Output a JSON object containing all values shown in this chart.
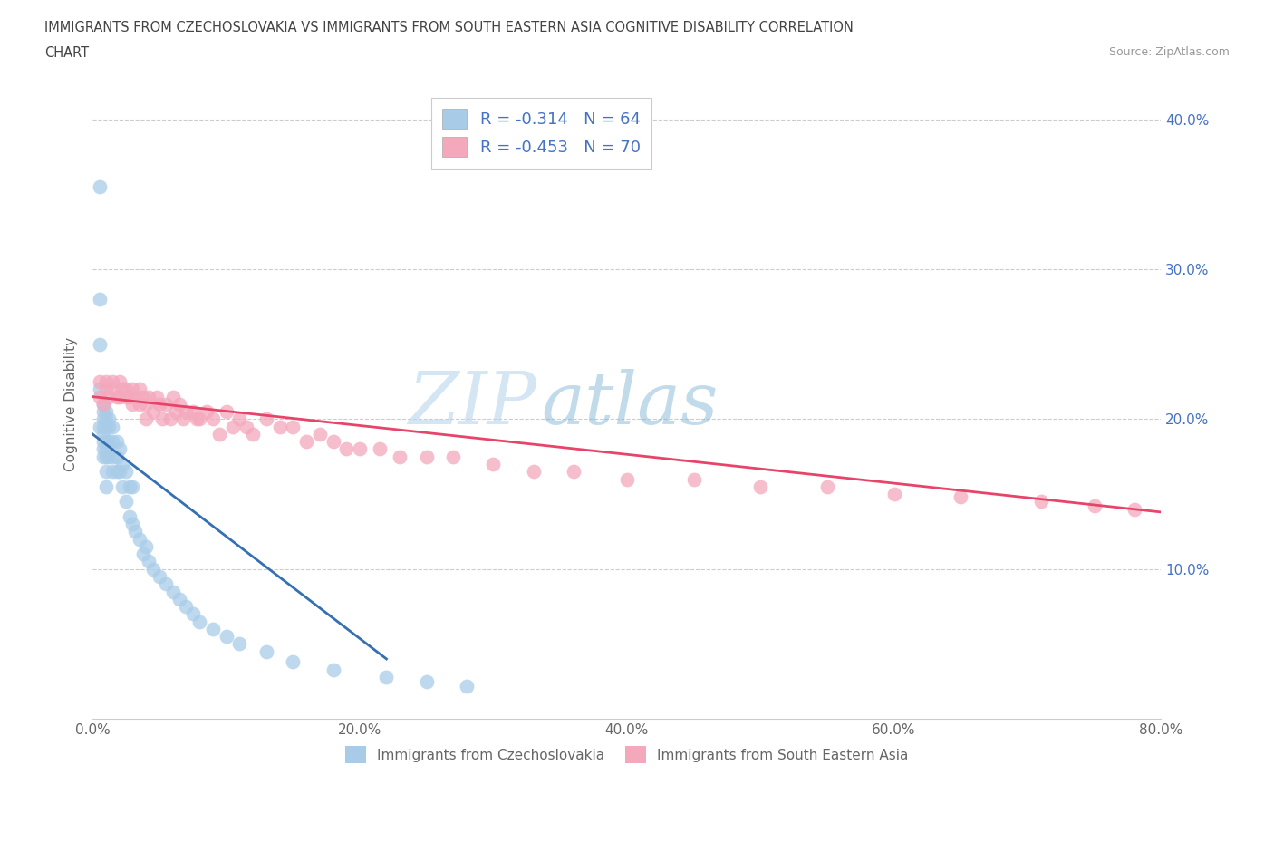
{
  "title_line1": "IMMIGRANTS FROM CZECHOSLOVAKIA VS IMMIGRANTS FROM SOUTH EASTERN ASIA COGNITIVE DISABILITY CORRELATION",
  "title_line2": "CHART",
  "source": "Source: ZipAtlas.com",
  "ylabel": "Cognitive Disability",
  "xlabel": "",
  "legend_label1": "Immigrants from Czechoslovakia",
  "legend_label2": "Immigrants from South Eastern Asia",
  "r1": -0.314,
  "n1": 64,
  "r2": -0.453,
  "n2": 70,
  "color1": "#a8cce8",
  "color2": "#f4a8bc",
  "line_color1": "#3470b2",
  "line_color2": "#e8446a",
  "xlim": [
    0.0,
    0.8
  ],
  "ylim": [
    0.0,
    0.42
  ],
  "xticks": [
    0.0,
    0.2,
    0.4,
    0.6,
    0.8
  ],
  "yticks": [
    0.1,
    0.2,
    0.3,
    0.4
  ],
  "xticklabels": [
    "0.0%",
    "20.0%",
    "40.0%",
    "60.0%",
    "80.0%"
  ],
  "yticklabels": [
    "10.0%",
    "20.0%",
    "30.0%",
    "40.0%"
  ],
  "grid_color": "#cccccc",
  "background_color": "#ffffff",
  "watermark_zip": "ZIP",
  "watermark_atlas": "atlas",
  "scatter1_x": [
    0.005,
    0.005,
    0.005,
    0.005,
    0.005,
    0.008,
    0.008,
    0.008,
    0.008,
    0.008,
    0.008,
    0.008,
    0.008,
    0.01,
    0.01,
    0.01,
    0.01,
    0.01,
    0.01,
    0.01,
    0.01,
    0.012,
    0.012,
    0.012,
    0.012,
    0.015,
    0.015,
    0.015,
    0.015,
    0.018,
    0.018,
    0.018,
    0.02,
    0.02,
    0.022,
    0.022,
    0.025,
    0.025,
    0.028,
    0.028,
    0.03,
    0.03,
    0.032,
    0.035,
    0.038,
    0.04,
    0.042,
    0.045,
    0.05,
    0.055,
    0.06,
    0.065,
    0.07,
    0.075,
    0.08,
    0.09,
    0.1,
    0.11,
    0.13,
    0.15,
    0.18,
    0.22,
    0.25,
    0.28
  ],
  "scatter1_y": [
    0.355,
    0.28,
    0.25,
    0.22,
    0.195,
    0.21,
    0.205,
    0.2,
    0.195,
    0.19,
    0.185,
    0.18,
    0.175,
    0.205,
    0.2,
    0.195,
    0.185,
    0.18,
    0.175,
    0.165,
    0.155,
    0.2,
    0.195,
    0.185,
    0.175,
    0.195,
    0.185,
    0.175,
    0.165,
    0.185,
    0.175,
    0.165,
    0.18,
    0.165,
    0.17,
    0.155,
    0.165,
    0.145,
    0.155,
    0.135,
    0.155,
    0.13,
    0.125,
    0.12,
    0.11,
    0.115,
    0.105,
    0.1,
    0.095,
    0.09,
    0.085,
    0.08,
    0.075,
    0.07,
    0.065,
    0.06,
    0.055,
    0.05,
    0.045,
    0.038,
    0.033,
    0.028,
    0.025,
    0.022
  ],
  "scatter2_x": [
    0.005,
    0.005,
    0.008,
    0.01,
    0.01,
    0.012,
    0.015,
    0.015,
    0.018,
    0.02,
    0.02,
    0.022,
    0.025,
    0.025,
    0.028,
    0.03,
    0.03,
    0.032,
    0.035,
    0.035,
    0.038,
    0.04,
    0.04,
    0.042,
    0.045,
    0.048,
    0.05,
    0.052,
    0.055,
    0.058,
    0.06,
    0.062,
    0.065,
    0.068,
    0.07,
    0.075,
    0.078,
    0.08,
    0.085,
    0.09,
    0.095,
    0.1,
    0.105,
    0.11,
    0.115,
    0.12,
    0.13,
    0.14,
    0.15,
    0.16,
    0.17,
    0.18,
    0.19,
    0.2,
    0.215,
    0.23,
    0.25,
    0.27,
    0.3,
    0.33,
    0.36,
    0.4,
    0.45,
    0.5,
    0.55,
    0.6,
    0.65,
    0.71,
    0.75,
    0.78
  ],
  "scatter2_y": [
    0.225,
    0.215,
    0.21,
    0.225,
    0.22,
    0.215,
    0.225,
    0.22,
    0.215,
    0.225,
    0.215,
    0.22,
    0.22,
    0.215,
    0.215,
    0.22,
    0.21,
    0.215,
    0.22,
    0.21,
    0.215,
    0.21,
    0.2,
    0.215,
    0.205,
    0.215,
    0.21,
    0.2,
    0.21,
    0.2,
    0.215,
    0.205,
    0.21,
    0.2,
    0.205,
    0.205,
    0.2,
    0.2,
    0.205,
    0.2,
    0.19,
    0.205,
    0.195,
    0.2,
    0.195,
    0.19,
    0.2,
    0.195,
    0.195,
    0.185,
    0.19,
    0.185,
    0.18,
    0.18,
    0.18,
    0.175,
    0.175,
    0.175,
    0.17,
    0.165,
    0.165,
    0.16,
    0.16,
    0.155,
    0.155,
    0.15,
    0.148,
    0.145,
    0.142,
    0.14
  ],
  "line1_x_start": 0.0,
  "line1_x_end": 0.22,
  "line1_y_start": 0.19,
  "line1_y_end": 0.04,
  "line2_x_start": 0.0,
  "line2_x_end": 0.8,
  "line2_y_start": 0.215,
  "line2_y_end": 0.138
}
